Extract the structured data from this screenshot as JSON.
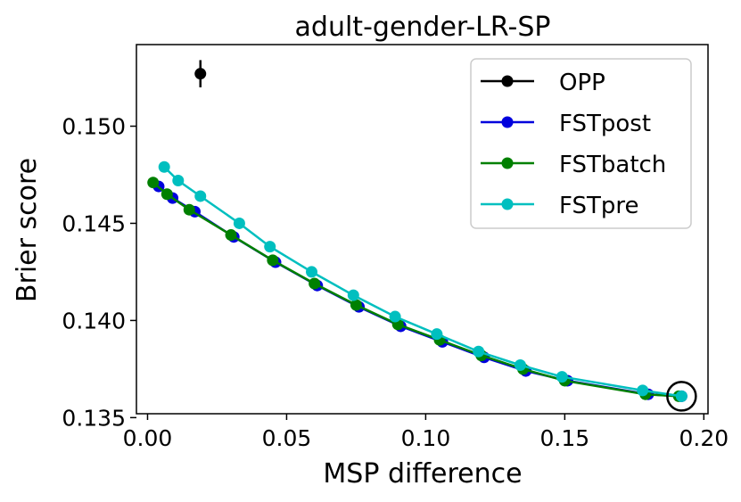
{
  "chart_data": {
    "type": "line",
    "title": "adult-gender-LR-SP",
    "xlabel": "MSP difference",
    "ylabel": "Brier score",
    "xlim": [
      -0.004,
      0.2015
    ],
    "ylim": [
      0.1352,
      0.1542
    ],
    "xticks": [
      0.0,
      0.05,
      0.1,
      0.15,
      0.2
    ],
    "xtick_labels": [
      "0.00",
      "0.05",
      "0.10",
      "0.15",
      "0.20"
    ],
    "yticks": [
      0.135,
      0.14,
      0.145,
      0.15
    ],
    "ytick_labels": [
      "0.135",
      "0.140",
      "0.145",
      "0.150"
    ],
    "legend_position": "top-right",
    "series": [
      {
        "name": "OPP",
        "color": "#000000",
        "points": [
          [
            0.019,
            0.1527
          ]
        ],
        "error": [
          0.0007
        ]
      },
      {
        "name": "FSTpost",
        "color": "#0000dd",
        "points": [
          [
            0.004,
            0.1469
          ],
          [
            0.009,
            0.1463
          ],
          [
            0.017,
            0.1456
          ],
          [
            0.031,
            0.1443
          ],
          [
            0.046,
            0.143
          ],
          [
            0.061,
            0.1418
          ],
          [
            0.076,
            0.1407
          ],
          [
            0.091,
            0.1397
          ],
          [
            0.106,
            0.1389
          ],
          [
            0.121,
            0.1381
          ],
          [
            0.136,
            0.1374
          ],
          [
            0.151,
            0.1369
          ],
          [
            0.18,
            0.1362
          ],
          [
            0.192,
            0.1361
          ]
        ]
      },
      {
        "name": "FSTbatch",
        "color": "#008000",
        "points": [
          [
            0.002,
            0.1471
          ],
          [
            0.007,
            0.1465
          ],
          [
            0.015,
            0.1457
          ],
          [
            0.03,
            0.1444
          ],
          [
            0.045,
            0.1431
          ],
          [
            0.06,
            0.1419
          ],
          [
            0.075,
            0.1408
          ],
          [
            0.09,
            0.1398
          ],
          [
            0.105,
            0.139
          ],
          [
            0.12,
            0.1382
          ],
          [
            0.135,
            0.1375
          ],
          [
            0.15,
            0.1369
          ],
          [
            0.179,
            0.1362
          ],
          [
            0.191,
            0.1361
          ]
        ]
      },
      {
        "name": "FSTpre",
        "color": "#00bfbf",
        "points": [
          [
            0.006,
            0.1479
          ],
          [
            0.011,
            0.1472
          ],
          [
            0.019,
            0.1464
          ],
          [
            0.033,
            0.145
          ],
          [
            0.044,
            0.1438
          ],
          [
            0.059,
            0.1425
          ],
          [
            0.074,
            0.1413
          ],
          [
            0.089,
            0.1402
          ],
          [
            0.104,
            0.1393
          ],
          [
            0.119,
            0.1384
          ],
          [
            0.134,
            0.1377
          ],
          [
            0.149,
            0.1371
          ],
          [
            0.178,
            0.1364
          ],
          [
            0.192,
            0.1361
          ]
        ]
      }
    ],
    "annotation": {
      "type": "circle",
      "point": [
        0.192,
        0.1361
      ]
    }
  }
}
